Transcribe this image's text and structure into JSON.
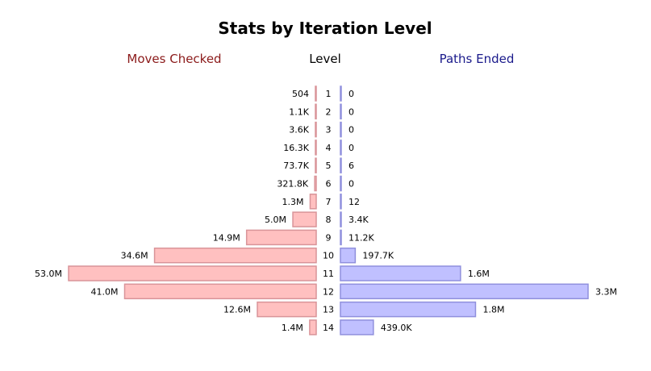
{
  "chart_data": {
    "type": "bar",
    "title": "Stats by Iteration Level",
    "headers": {
      "left": "Moves Checked",
      "center": "Level",
      "right": "Paths Ended"
    },
    "colors": {
      "left_fill": "#ffc0c0",
      "left_stroke": "#d99499",
      "left_header": "#8b1a1a",
      "right_fill": "#c0c0ff",
      "right_stroke": "#9090dd",
      "right_header": "#1a1a8b"
    },
    "categories": [
      "1",
      "2",
      "3",
      "4",
      "5",
      "6",
      "7",
      "8",
      "9",
      "10",
      "11",
      "12",
      "13",
      "14"
    ],
    "series": [
      {
        "name": "Moves Checked",
        "values": [
          504,
          1100,
          3600,
          16300,
          73700,
          321800,
          1300000,
          5000000,
          14900000,
          34600000,
          53000000,
          41000000,
          12600000,
          1400000
        ],
        "labels": [
          "504",
          "1.1K",
          "3.6K",
          "16.3K",
          "73.7K",
          "321.8K",
          "1.3M",
          "5.0M",
          "14.9M",
          "34.6M",
          "53.0M",
          "41.0M",
          "12.6M",
          "1.4M"
        ]
      },
      {
        "name": "Paths Ended",
        "values": [
          0,
          0,
          0,
          0,
          6,
          0,
          12,
          3400,
          11200,
          197700,
          1600000,
          3300000,
          1800000,
          439000
        ],
        "labels": [
          "0",
          "0",
          "0",
          "0",
          "6",
          "0",
          "12",
          "3.4K",
          "11.2K",
          "197.7K",
          "1.6M",
          "3.3M",
          "1.8M",
          "439.0K"
        ]
      }
    ]
  }
}
